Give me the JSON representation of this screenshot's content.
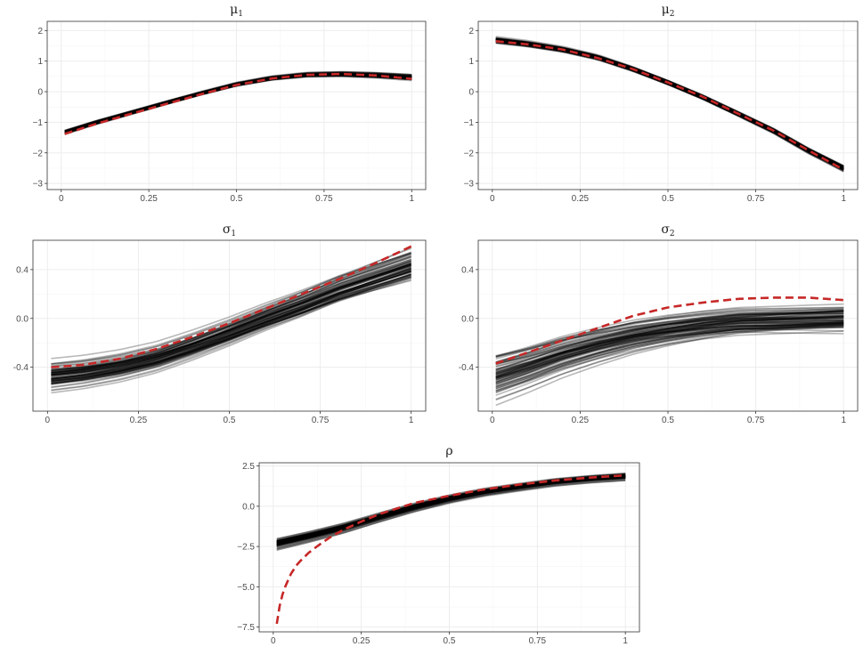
{
  "chart_data": [
    {
      "type": "line",
      "title": "μ",
      "title_subscript": "1",
      "xlim": [
        0,
        1
      ],
      "ylim": [
        -3.2,
        2.3
      ],
      "x_ticks": [
        "0",
        "0.25",
        "0.5",
        "0.75",
        "1"
      ],
      "y_ticks": [
        {
          "value": 2,
          "label": "2"
        },
        {
          "value": 1,
          "label": "1"
        },
        {
          "value": 0,
          "label": "0"
        },
        {
          "value": -1,
          "label": "−1"
        },
        {
          "value": -2,
          "label": "−2"
        },
        {
          "value": -3,
          "label": "−3"
        }
      ],
      "grid": true,
      "true_curve": {
        "color": "#c62828",
        "style": "dashed",
        "x": [
          0.01,
          0.1,
          0.2,
          0.3,
          0.4,
          0.5,
          0.6,
          0.7,
          0.8,
          0.9,
          1.0
        ],
        "y": [
          -1.38,
          -1.05,
          -0.72,
          -0.4,
          -0.08,
          0.22,
          0.43,
          0.55,
          0.58,
          0.53,
          0.42
        ]
      },
      "estimate_band": {
        "color": "#000000",
        "count": 80,
        "x": [
          0.01,
          0.1,
          0.2,
          0.3,
          0.4,
          0.5,
          0.6,
          0.7,
          0.8,
          0.9,
          1.0
        ],
        "center": [
          -1.32,
          -1.0,
          -0.68,
          -0.36,
          -0.05,
          0.24,
          0.44,
          0.55,
          0.57,
          0.53,
          0.46
        ],
        "spread_start": 0.12,
        "spread_end": 0.16
      }
    },
    {
      "type": "line",
      "title": "μ",
      "title_subscript": "2",
      "xlim": [
        0,
        1
      ],
      "ylim": [
        -3.2,
        2.3
      ],
      "x_ticks": [
        "0",
        "0.25",
        "0.5",
        "0.75",
        "1"
      ],
      "y_ticks": [
        {
          "value": 2,
          "label": "2"
        },
        {
          "value": 1,
          "label": "1"
        },
        {
          "value": 0,
          "label": "0"
        },
        {
          "value": -1,
          "label": "−1"
        },
        {
          "value": -2,
          "label": "−2"
        },
        {
          "value": -3,
          "label": "−3"
        }
      ],
      "grid": true,
      "true_curve": {
        "color": "#c62828",
        "style": "dashed",
        "x": [
          0.01,
          0.1,
          0.2,
          0.3,
          0.4,
          0.5,
          0.6,
          0.7,
          0.8,
          0.9,
          1.0
        ],
        "y": [
          1.65,
          1.55,
          1.38,
          1.1,
          0.74,
          0.3,
          -0.17,
          -0.72,
          -1.27,
          -1.92,
          -2.55
        ]
      },
      "estimate_band": {
        "color": "#000000",
        "count": 80,
        "x": [
          0.01,
          0.1,
          0.2,
          0.3,
          0.4,
          0.5,
          0.6,
          0.7,
          0.8,
          0.9,
          1.0
        ],
        "center": [
          1.68,
          1.56,
          1.38,
          1.12,
          0.74,
          0.3,
          -0.18,
          -0.72,
          -1.27,
          -1.92,
          -2.5
        ],
        "spread_start": 0.14,
        "spread_end": 0.16
      }
    },
    {
      "type": "line",
      "title": "σ",
      "title_subscript": "1",
      "xlim": [
        0,
        1
      ],
      "ylim": [
        -0.76,
        0.64
      ],
      "x_ticks": [
        "0",
        "0.25",
        "0.5",
        "0.75",
        "1"
      ],
      "y_ticks": [
        {
          "value": 0.4,
          "label": "0.4"
        },
        {
          "value": 0.0,
          "label": "0.0"
        },
        {
          "value": -0.4,
          "label": "-0.4"
        }
      ],
      "grid": true,
      "true_curve": {
        "color": "#c62828",
        "style": "dashed",
        "x": [
          0.01,
          0.1,
          0.2,
          0.3,
          0.4,
          0.5,
          0.6,
          0.7,
          0.8,
          0.9,
          1.0
        ],
        "y": [
          -0.4,
          -0.38,
          -0.33,
          -0.25,
          -0.15,
          -0.04,
          0.08,
          0.2,
          0.32,
          0.45,
          0.59
        ]
      },
      "estimate_band": {
        "color": "#000000",
        "count": 80,
        "x": [
          0.01,
          0.1,
          0.2,
          0.3,
          0.4,
          0.5,
          0.6,
          0.7,
          0.8,
          0.9,
          1.0
        ],
        "center": [
          -0.48,
          -0.45,
          -0.4,
          -0.33,
          -0.23,
          -0.12,
          0.0,
          0.11,
          0.23,
          0.33,
          0.43
        ],
        "spread_start": 0.18,
        "spread_end": 0.22
      }
    },
    {
      "type": "line",
      "title": "σ",
      "title_subscript": "2",
      "xlim": [
        0,
        1
      ],
      "ylim": [
        -0.76,
        0.64
      ],
      "x_ticks": [
        "0",
        "0.25",
        "0.5",
        "0.75",
        "1"
      ],
      "y_ticks": [
        {
          "value": 0.4,
          "label": "0.4"
        },
        {
          "value": 0.0,
          "label": "0.0"
        },
        {
          "value": -0.4,
          "label": "-0.4"
        }
      ],
      "grid": true,
      "true_curve": {
        "color": "#c62828",
        "style": "dashed",
        "x": [
          0.01,
          0.1,
          0.2,
          0.3,
          0.4,
          0.5,
          0.6,
          0.7,
          0.8,
          0.9,
          1.0
        ],
        "y": [
          -0.37,
          -0.28,
          -0.18,
          -0.08,
          0.02,
          0.09,
          0.13,
          0.16,
          0.17,
          0.17,
          0.15
        ]
      },
      "estimate_band": {
        "color": "#000000",
        "count": 80,
        "x": [
          0.01,
          0.1,
          0.2,
          0.3,
          0.4,
          0.5,
          0.6,
          0.7,
          0.8,
          0.9,
          1.0
        ],
        "center": [
          -0.48,
          -0.4,
          -0.3,
          -0.22,
          -0.15,
          -0.1,
          -0.06,
          -0.03,
          -0.02,
          -0.01,
          0.0
        ],
        "spread_start": 0.3,
        "spread_end": 0.22
      }
    },
    {
      "type": "line",
      "title": "ρ",
      "title_subscript": "",
      "xlim": [
        0,
        1
      ],
      "ylim": [
        -7.8,
        2.7
      ],
      "x_ticks": [
        "0",
        "0.25",
        "0.5",
        "0.75",
        "1"
      ],
      "y_ticks": [
        {
          "value": 2.5,
          "label": "2.5"
        },
        {
          "value": 0.0,
          "label": "0.0"
        },
        {
          "value": -2.5,
          "label": "−2.5"
        },
        {
          "value": -5.0,
          "label": "−5.0"
        },
        {
          "value": -7.5,
          "label": "−7.5"
        }
      ],
      "grid": true,
      "true_curve": {
        "color": "#c62828",
        "style": "dashed",
        "x": [
          0.01,
          0.02,
          0.03,
          0.05,
          0.07,
          0.1,
          0.13,
          0.16,
          0.2,
          0.25,
          0.3,
          0.4,
          0.5,
          0.6,
          0.7,
          0.8,
          0.9,
          1.0
        ],
        "y": [
          -7.3,
          -5.95,
          -5.2,
          -4.2,
          -3.55,
          -2.9,
          -2.4,
          -1.95,
          -1.45,
          -0.95,
          -0.5,
          0.2,
          0.65,
          1.05,
          1.35,
          1.6,
          1.78,
          1.92
        ]
      },
      "estimate_band": {
        "color": "#000000",
        "count": 80,
        "x": [
          0.01,
          0.1,
          0.2,
          0.3,
          0.4,
          0.5,
          0.6,
          0.7,
          0.8,
          0.9,
          1.0
        ],
        "center": [
          -2.35,
          -1.9,
          -1.35,
          -0.7,
          -0.08,
          0.45,
          0.88,
          1.2,
          1.5,
          1.7,
          1.85
        ],
        "spread_start": 0.45,
        "spread_end": 0.4
      }
    }
  ]
}
